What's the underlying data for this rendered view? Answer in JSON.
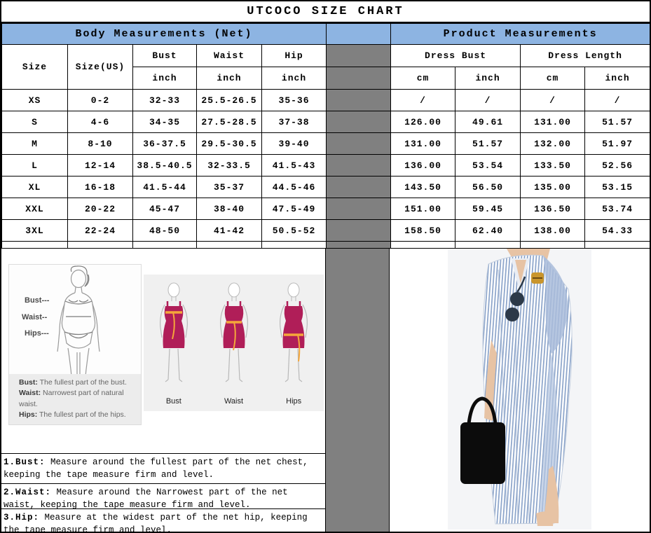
{
  "title": "UTCOCO SIZE CHART",
  "colors": {
    "header_blue": "#8db4e2",
    "separator_gray": "#808080",
    "border_black": "#000000",
    "diagram_dress_crimson": "#b01e58",
    "diagram_tape_orange": "#f5a73a",
    "photo_stripe_blue": "#8aa3c9",
    "photo_background": "#f4f5f7"
  },
  "body_section": {
    "header": "Body Measurements (Net)",
    "columns": {
      "size": "Size",
      "size_us": "Size(US)",
      "bust": "Bust",
      "waist": "Waist",
      "hip": "Hip",
      "unit": "inch"
    },
    "rows": [
      {
        "size": "XS",
        "us": "0-2",
        "bust": "32-33",
        "waist": "25.5-26.5",
        "hip": "35-36"
      },
      {
        "size": "S",
        "us": "4-6",
        "bust": "34-35",
        "waist": "27.5-28.5",
        "hip": "37-38"
      },
      {
        "size": "M",
        "us": "8-10",
        "bust": "36-37.5",
        "waist": "29.5-30.5",
        "hip": "39-40"
      },
      {
        "size": "L",
        "us": "12-14",
        "bust": "38.5-40.5",
        "waist": "32-33.5",
        "hip": "41.5-43"
      },
      {
        "size": "XL",
        "us": "16-18",
        "bust": "41.5-44",
        "waist": "35-37",
        "hip": "44.5-46"
      },
      {
        "size": "XXL",
        "us": "20-22",
        "bust": "45-47",
        "waist": "38-40",
        "hip": "47.5-49"
      },
      {
        "size": "3XL",
        "us": "22-24",
        "bust": "48-50",
        "waist": "41-42",
        "hip": "50.5-52"
      }
    ]
  },
  "product_section": {
    "header": "Product Measurements",
    "columns": {
      "dress_bust": "Dress Bust",
      "dress_length": "Dress Length",
      "cm": "cm",
      "inch": "inch"
    },
    "rows": [
      {
        "bust_cm": "/",
        "bust_in": "/",
        "len_cm": "/",
        "len_in": "/"
      },
      {
        "bust_cm": "126.00",
        "bust_in": "49.61",
        "len_cm": "131.00",
        "len_in": "51.57"
      },
      {
        "bust_cm": "131.00",
        "bust_in": "51.57",
        "len_cm": "132.00",
        "len_in": "51.97"
      },
      {
        "bust_cm": "136.00",
        "bust_in": "53.54",
        "len_cm": "133.50",
        "len_in": "52.56"
      },
      {
        "bust_cm": "143.50",
        "bust_in": "56.50",
        "len_cm": "135.00",
        "len_in": "53.15"
      },
      {
        "bust_cm": "151.00",
        "bust_in": "59.45",
        "len_cm": "136.50",
        "len_in": "53.74"
      },
      {
        "bust_cm": "158.50",
        "bust_in": "62.40",
        "len_cm": "138.00",
        "len_in": "54.33"
      }
    ]
  },
  "measure_guide": {
    "labels": {
      "bust": "Bust---",
      "waist": "Waist--",
      "hips": "Hips---"
    },
    "captions": [
      {
        "label": "Bust:",
        "text": " The fullest part of the bust."
      },
      {
        "label": "Waist:",
        "text": " Narrowest part of natural waist."
      },
      {
        "label": "Hips:",
        "text": " The fullest part of the hips."
      }
    ]
  },
  "tape_guide": {
    "labels": [
      "Bust",
      "Waist",
      "Hips"
    ]
  },
  "notes": [
    {
      "label": "1.Bust:",
      "text": " Measure around the fullest part of the net chest, keeping the tape  measure firm and level."
    },
    {
      "label": "2.Waist:",
      "text": " Measure around the Narrowest part of the net waist, keeping the tape  measure firm and level."
    },
    {
      "label": "3.Hip:",
      "text": " Measure at the widest part of the net hip, keeping the tape measure firm and level."
    }
  ]
}
